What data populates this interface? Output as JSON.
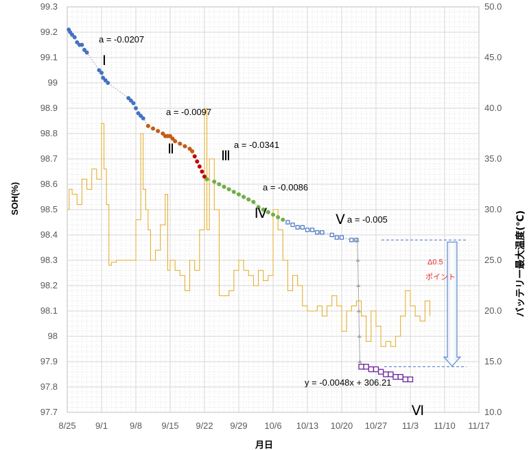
{
  "chart_data": {
    "type": "line",
    "xlabel": "月日",
    "ylabel": "SOH(%)",
    "y2label": "バッテリー最大温度(℃)",
    "x_ticks": [
      "8/25",
      "9/1",
      "9/8",
      "9/15",
      "9/22",
      "9/29",
      "10/6",
      "10/13",
      "10/20",
      "10/27",
      "11/3",
      "11/10",
      "11/17"
    ],
    "x_day_range": [
      0,
      84
    ],
    "ylim": [
      97.7,
      99.3
    ],
    "y_ticks": [
      "99.3",
      "99.2",
      "99.1",
      "99",
      "98.9",
      "98.8",
      "98.7",
      "98.6",
      "98.5",
      "98.4",
      "98.3",
      "98.2",
      "98.1",
      "98",
      "97.9",
      "97.8",
      "97.7"
    ],
    "y2lim": [
      10.0,
      50.0
    ],
    "y2_ticks": [
      "50.0",
      "45.0",
      "40.0",
      "35.0",
      "30.0",
      "25.0",
      "20.0",
      "15.0",
      "10.0"
    ],
    "grid": true,
    "segments": [
      {
        "label": "Ⅰ",
        "slope_text": "a = -0.0207",
        "color": "#4472c4",
        "points": [
          [
            0.3,
            99.21
          ],
          [
            0.6,
            99.2
          ],
          [
            1.0,
            99.19
          ],
          [
            1.5,
            99.18
          ],
          [
            2.0,
            99.16
          ],
          [
            2.5,
            99.15
          ],
          [
            3.0,
            99.15
          ],
          [
            3.5,
            99.13
          ],
          [
            4.0,
            99.12
          ],
          [
            6.5,
            99.05
          ],
          [
            7.0,
            99.04
          ],
          [
            7.3,
            99.02
          ],
          [
            7.8,
            99.01
          ],
          [
            8.3,
            99.0
          ],
          [
            12.5,
            98.94
          ],
          [
            13.0,
            98.93
          ],
          [
            13.5,
            98.92
          ],
          [
            14.0,
            98.9
          ],
          [
            14.5,
            98.88
          ],
          [
            15.0,
            98.87
          ],
          [
            15.5,
            98.86
          ]
        ]
      },
      {
        "label": "Ⅱ",
        "slope_text": "a = -0.0097",
        "color": "#c55a11",
        "points": [
          [
            16.5,
            98.83
          ],
          [
            17.5,
            98.82
          ],
          [
            18.5,
            98.81
          ],
          [
            19.5,
            98.8
          ],
          [
            20.0,
            98.79
          ],
          [
            20.5,
            98.79
          ],
          [
            21.0,
            98.79
          ],
          [
            21.5,
            98.78
          ],
          [
            22.0,
            98.77
          ],
          [
            23.0,
            98.76
          ],
          [
            24.0,
            98.75
          ],
          [
            25.0,
            98.74
          ],
          [
            25.5,
            98.73
          ]
        ]
      },
      {
        "label": "Ⅲ",
        "slope_text": "a = -0.0341",
        "color": "#c00000",
        "points": [
          [
            26.0,
            98.71
          ],
          [
            26.5,
            98.69
          ],
          [
            27.0,
            98.67
          ],
          [
            27.5,
            98.65
          ],
          [
            28.0,
            98.63
          ]
        ]
      },
      {
        "label": "Ⅳ",
        "slope_text": "a = -0.0086",
        "color": "#70ad47",
        "points": [
          [
            28.5,
            98.62
          ],
          [
            30.0,
            98.61
          ],
          [
            31.0,
            98.6
          ],
          [
            32.0,
            98.59
          ],
          [
            33.0,
            98.58
          ],
          [
            34.0,
            98.57
          ],
          [
            35.0,
            98.56
          ],
          [
            36.0,
            98.55
          ],
          [
            37.0,
            98.54
          ],
          [
            38.0,
            98.53
          ],
          [
            39.0,
            98.51
          ],
          [
            40.0,
            98.5
          ],
          [
            41.0,
            98.49
          ],
          [
            42.0,
            98.48
          ],
          [
            43.0,
            98.47
          ],
          [
            44.0,
            98.46
          ]
        ]
      },
      {
        "label": "Ⅴ",
        "slope_text": "a = -0.005",
        "color": "#4472c4",
        "points": [
          [
            45.0,
            98.45
          ],
          [
            46.0,
            98.44
          ],
          [
            47.0,
            98.43
          ],
          [
            48.0,
            98.43
          ],
          [
            49.0,
            98.42
          ],
          [
            50.0,
            98.42
          ],
          [
            51.0,
            98.41
          ],
          [
            52.0,
            98.41
          ],
          [
            54.0,
            98.4
          ],
          [
            55.0,
            98.39
          ],
          [
            56.0,
            98.39
          ],
          [
            58.0,
            98.38
          ],
          [
            59.0,
            98.38
          ]
        ]
      },
      {
        "label": "Ⅵ",
        "slope_text": "y = -0.0048x + 306.21",
        "color": "#7030a0",
        "points": [
          [
            60.0,
            97.88
          ],
          [
            61.0,
            97.88
          ],
          [
            62.0,
            97.87
          ],
          [
            63.0,
            97.87
          ],
          [
            64.0,
            97.86
          ],
          [
            65.0,
            97.85
          ],
          [
            66.0,
            97.85
          ],
          [
            67.0,
            97.84
          ],
          [
            68.0,
            97.84
          ],
          [
            69.0,
            97.83
          ],
          [
            70.0,
            97.83
          ]
        ]
      }
    ],
    "drop_points": [
      [
        59.2,
        98.38
      ],
      [
        59.3,
        98.3
      ],
      [
        59.4,
        98.2
      ],
      [
        59.5,
        98.1
      ],
      [
        59.6,
        98.0
      ],
      [
        59.7,
        97.9
      ]
    ],
    "temperature": [
      [
        0,
        30.0
      ],
      [
        0.4,
        32.0
      ],
      [
        1,
        31.5
      ],
      [
        2,
        30.5
      ],
      [
        3,
        33.0
      ],
      [
        4,
        32.0
      ],
      [
        5,
        34.0
      ],
      [
        6,
        33.0
      ],
      [
        7,
        38.5
      ],
      [
        7.5,
        34.0
      ],
      [
        8,
        30.5
      ],
      [
        8.5,
        24.5
      ],
      [
        9,
        24.8
      ],
      [
        10,
        25.0
      ],
      [
        13,
        25.0
      ],
      [
        14,
        29.0
      ],
      [
        15,
        37.5
      ],
      [
        15.5,
        32.0
      ],
      [
        16,
        30.0
      ],
      [
        16.5,
        28.0
      ],
      [
        17,
        25.0
      ],
      [
        18,
        26.0
      ],
      [
        19,
        28.5
      ],
      [
        20,
        31.5
      ],
      [
        20.5,
        24.0
      ],
      [
        21,
        25.0
      ],
      [
        22,
        24.0
      ],
      [
        23,
        23.5
      ],
      [
        24,
        22.0
      ],
      [
        25,
        25.0
      ],
      [
        26,
        24.0
      ],
      [
        27,
        28.0
      ],
      [
        28,
        40.0
      ],
      [
        28.5,
        28.0
      ],
      [
        29,
        35.0
      ],
      [
        30,
        30.0
      ],
      [
        31,
        21.5
      ],
      [
        32,
        21.5
      ],
      [
        33,
        22.0
      ],
      [
        34,
        24.0
      ],
      [
        35,
        25.0
      ],
      [
        36,
        24.0
      ],
      [
        37,
        23.5
      ],
      [
        38,
        22.5
      ],
      [
        39,
        24.0
      ],
      [
        40,
        23.0
      ],
      [
        41,
        23.5
      ],
      [
        42,
        30.0
      ],
      [
        43,
        28.0
      ],
      [
        44,
        25.0
      ],
      [
        45,
        22.0
      ],
      [
        46,
        23.5
      ],
      [
        47,
        22.5
      ],
      [
        48,
        20.5
      ],
      [
        49,
        20.0
      ],
      [
        50,
        20.0
      ],
      [
        51,
        20.5
      ],
      [
        52,
        19.5
      ],
      [
        53,
        20.5
      ],
      [
        54,
        21.5
      ],
      [
        55,
        20.5
      ],
      [
        56,
        18.0
      ],
      [
        57,
        20.0
      ],
      [
        58,
        20.5
      ],
      [
        59,
        21.0
      ],
      [
        60,
        19.5
      ],
      [
        61,
        17.0
      ],
      [
        62,
        20.0
      ],
      [
        63,
        18.5
      ],
      [
        64,
        16.5
      ],
      [
        65,
        17.0
      ],
      [
        66,
        16.5
      ],
      [
        67,
        17.5
      ],
      [
        68,
        19.5
      ],
      [
        69,
        22.0
      ],
      [
        70,
        20.5
      ],
      [
        71,
        19.5
      ],
      [
        72,
        19.0
      ],
      [
        73,
        21.0
      ],
      [
        74,
        19.5
      ]
    ],
    "temperature_color": "#e0a820",
    "delta_annotation": {
      "line1": "Δ0.5",
      "line2": "ポイント"
    }
  }
}
